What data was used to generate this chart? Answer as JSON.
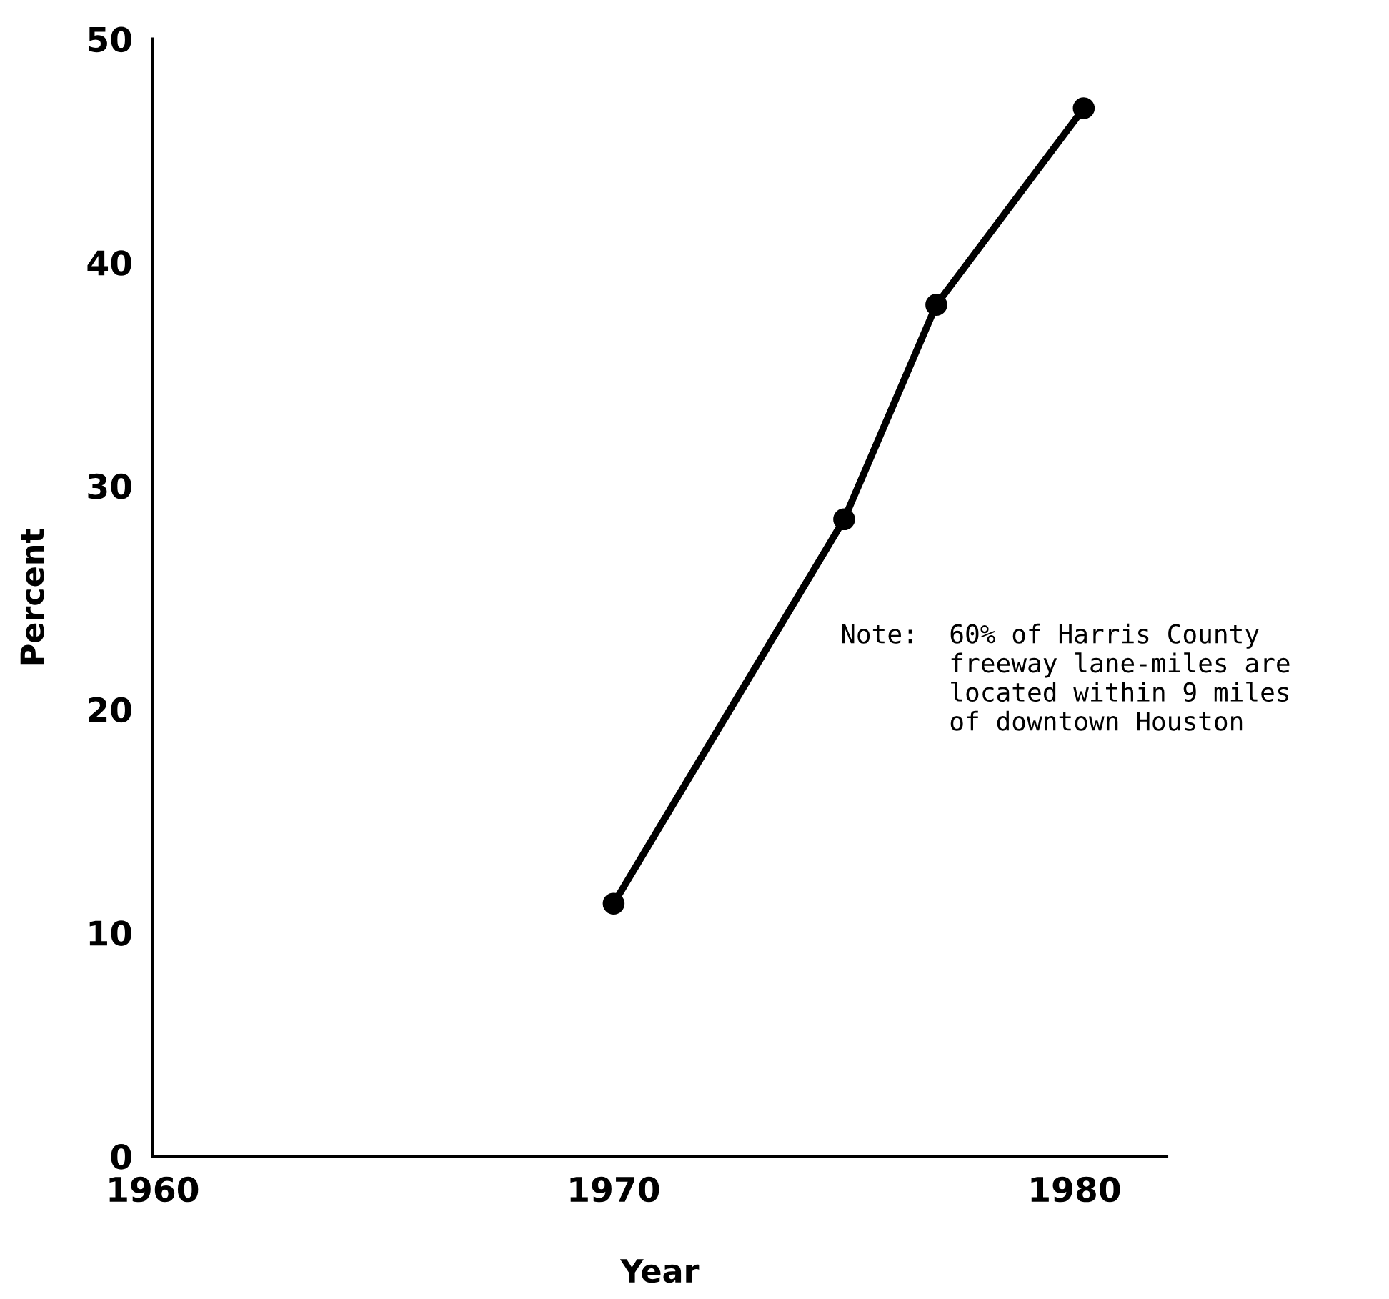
{
  "chart_data": {
    "type": "line",
    "xlabel": "Year",
    "ylabel": "Percent",
    "x": [
      1970,
      1975,
      1977,
      1980.2
    ],
    "series": [
      {
        "color": "#000000",
        "values": [
          11.3,
          28.5,
          38.1,
          46.9
        ]
      }
    ],
    "marker": "circle",
    "line_style": "solid",
    "grid": false,
    "legend": false,
    "xlim": [
      1960,
      1982
    ],
    "xticks": [
      1960,
      1970,
      1980
    ],
    "ylim": [
      0,
      50
    ],
    "yticks": [
      0,
      10,
      20,
      30,
      40,
      50
    ],
    "annotations": [
      "Note:  60% of Harris County\n       freeway lane-miles are\n       located within 9 miles\n       of downtown Houston"
    ]
  }
}
